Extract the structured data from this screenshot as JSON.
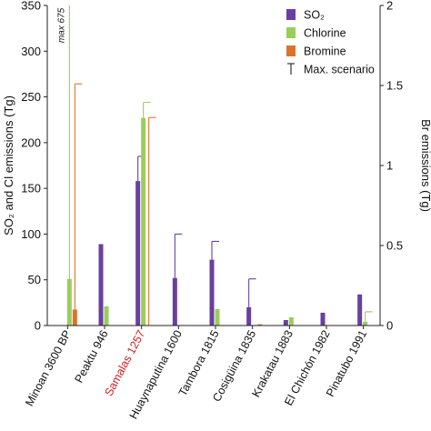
{
  "chart_data": {
    "type": "bar",
    "categories": [
      "Minoan 3600 BP",
      "Peaktu 946",
      "Samalas 1257",
      "Huaynaputina 1600",
      "Tambora 1815",
      "Cosigüina 1835",
      "Krakatau 1883",
      "El Chichón 1982",
      "Pinatubo 1991"
    ],
    "highlight_category": "Samalas 1257",
    "highlight_color": "#cc1f1f",
    "ylabel_left": "SO₂ and Cl emissions (Tg)",
    "ylabel_right": "Br emissions (Tg)",
    "ylim_left": [
      0,
      350
    ],
    "ylim_right": [
      0,
      2
    ],
    "yticks_left": [
      "0",
      "50",
      "100",
      "150",
      "200",
      "250",
      "300",
      "350"
    ],
    "yticks_right": [
      "0",
      "0.5",
      "1",
      "1.5",
      "2"
    ],
    "legend_position": "top-right",
    "series": [
      {
        "name": "SO₂",
        "axis": "left",
        "color": "#6a3fa0",
        "values": [
          null,
          89,
          158,
          52,
          72,
          20,
          6,
          14,
          34
        ],
        "max": [
          null,
          null,
          185,
          100,
          92,
          51,
          null,
          null,
          null
        ]
      },
      {
        "name": "Chlorine",
        "axis": "left",
        "color": "#9acd5a",
        "values": [
          51,
          21,
          227,
          null,
          18,
          null,
          9,
          null,
          4
        ],
        "max": [
          675,
          null,
          244,
          null,
          null,
          null,
          null,
          null,
          15
        ]
      },
      {
        "name": "Bromine",
        "axis": "right",
        "color": "#d9742e",
        "values": [
          0.1,
          null,
          null,
          null,
          null,
          0.008,
          null,
          null,
          null
        ],
        "max": [
          1.51,
          null,
          1.3,
          null,
          null,
          null,
          null,
          null,
          null
        ]
      }
    ],
    "max_legend": "Max. scenario",
    "annotation": "max 675"
  }
}
